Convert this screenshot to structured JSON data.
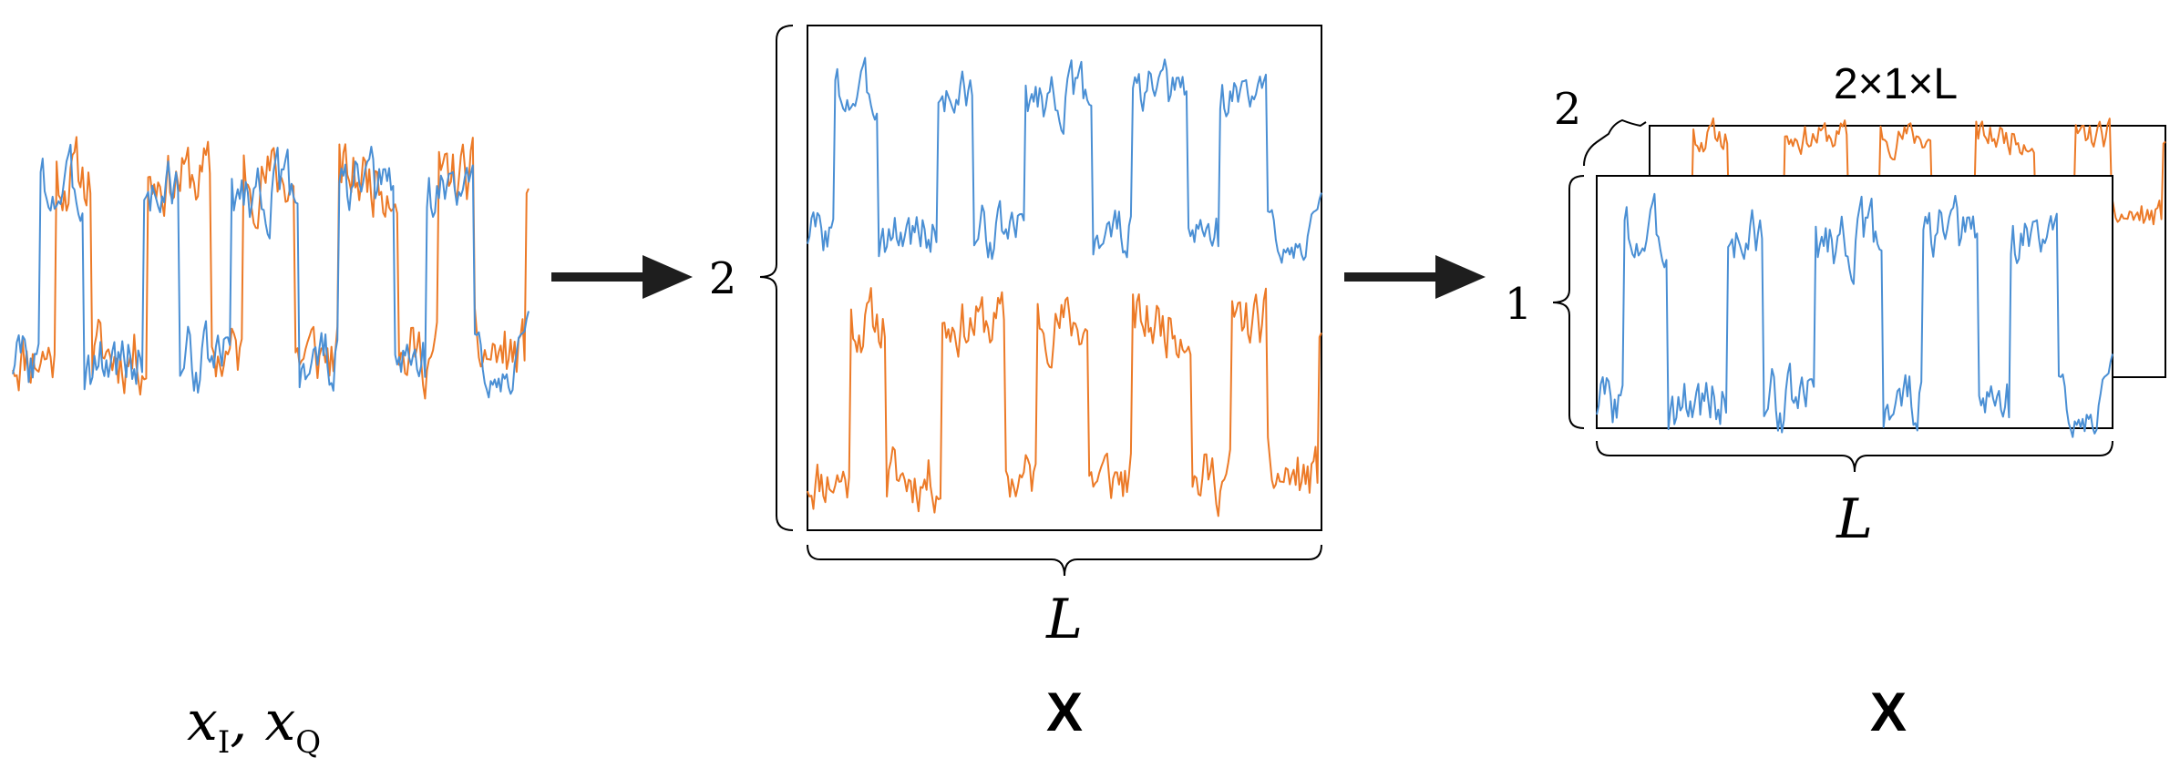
{
  "stage1": {
    "var_i": "x",
    "sub_i": "I",
    "separator": ", ",
    "var_q": "x",
    "sub_q": "Q"
  },
  "stage2": {
    "rows_label": "2",
    "length_label": "L",
    "matrix_label": "X"
  },
  "stage3": {
    "channels_label": "2",
    "rows_label": "1",
    "length_label": "L",
    "shape_label": "2×1×L",
    "tensor_label": "X"
  },
  "colors": {
    "in_phase": "#4a8fd4",
    "quadrature": "#ec7a27",
    "arrow": "#1e1e1e"
  }
}
